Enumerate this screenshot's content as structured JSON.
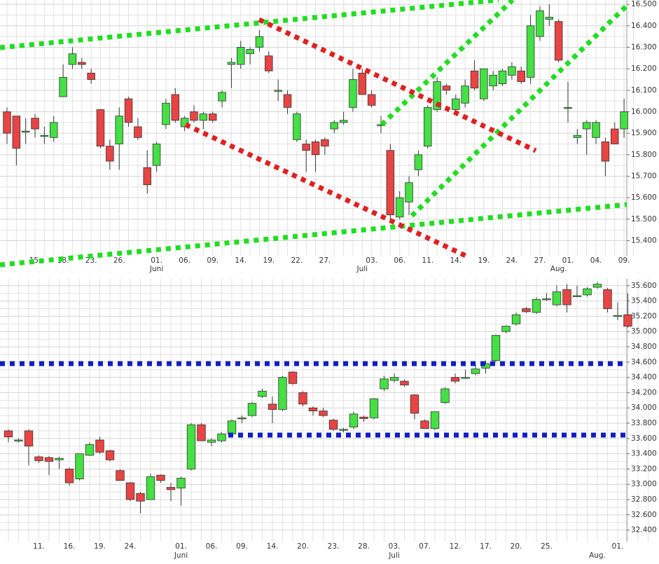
{
  "chart_data": [
    {
      "type": "candlestick",
      "categories": [
        null,
        null,
        null,
        "15.",
        null,
        null,
        "18.",
        null,
        null,
        "23.",
        null,
        null,
        "26.",
        null,
        null,
        null,
        "01.",
        null,
        null,
        "06.",
        null,
        null,
        "09.",
        null,
        null,
        "14.",
        null,
        null,
        "19.",
        null,
        null,
        "22.",
        null,
        null,
        "27.",
        null,
        null,
        null,
        null,
        "03.",
        null,
        null,
        "06.",
        null,
        null,
        "11.",
        null,
        null,
        "14.",
        null,
        null,
        "19.",
        null,
        null,
        "24.",
        null,
        null,
        "27.",
        null,
        null,
        "01.",
        null,
        null,
        "04.",
        null,
        null,
        "09.",
        null
      ],
      "months": [
        null,
        null,
        null,
        null,
        null,
        null,
        null,
        null,
        null,
        null,
        null,
        null,
        null,
        null,
        null,
        null,
        "Juni",
        null,
        null,
        null,
        null,
        null,
        null,
        null,
        null,
        null,
        null,
        null,
        null,
        null,
        null,
        null,
        null,
        null,
        null,
        null,
        null,
        null,
        "Juli",
        null,
        null,
        null,
        null,
        null,
        null,
        null,
        null,
        null,
        null,
        null,
        null,
        null,
        null,
        null,
        null,
        null,
        null,
        null,
        null,
        "Aug.",
        null,
        null,
        null,
        null,
        null,
        null,
        null
      ],
      "open": [
        16.0,
        15.98,
        15.91,
        15.97,
        15.89,
        15.88,
        16.07,
        16.22,
        16.23,
        16.18,
        16.01,
        15.84,
        15.85,
        16.06,
        15.93,
        15.74,
        15.75,
        15.94,
        16.08,
        15.93,
        16.0,
        15.96,
        15.99,
        16.05,
        16.22,
        16.22,
        16.27,
        16.3,
        16.26,
        16.1,
        16.08,
        15.87,
        15.85,
        15.86,
        15.87,
        15.92,
        15.95,
        16.02,
        16.18,
        16.08,
        15.94,
        15.82,
        15.51,
        15.58,
        15.73,
        15.84,
        16.01,
        16.12,
        16.01,
        16.04,
        16.19,
        16.06,
        16.12,
        16.13,
        16.17,
        16.19,
        16.16,
        16.35,
        16.43,
        16.42,
        16.02,
        15.88,
        15.92,
        15.88,
        15.86,
        15.92,
        15.92
      ],
      "high": [
        16.02,
        15.98,
        15.97,
        15.99,
        15.93,
        15.98,
        16.22,
        16.3,
        16.25,
        16.2,
        16.01,
        15.87,
        16.02,
        16.07,
        15.97,
        15.82,
        15.86,
        16.06,
        16.11,
        15.98,
        16.03,
        16.0,
        16.0,
        16.1,
        16.25,
        16.33,
        16.3,
        16.38,
        16.28,
        16.15,
        16.1,
        16.0,
        15.87,
        15.87,
        15.88,
        15.96,
        16.0,
        16.2,
        16.2,
        16.1,
        15.98,
        15.85,
        15.63,
        15.7,
        15.82,
        16.03,
        16.16,
        16.13,
        16.08,
        16.15,
        16.24,
        16.2,
        16.19,
        16.2,
        16.23,
        16.21,
        16.45,
        16.49,
        16.5,
        16.43,
        16.14,
        15.92,
        15.96,
        15.96,
        15.88,
        15.95,
        16.06
      ],
      "low": [
        15.85,
        15.75,
        15.85,
        15.88,
        15.85,
        15.86,
        16.07,
        16.2,
        16.2,
        16.13,
        15.83,
        15.73,
        15.73,
        15.93,
        15.87,
        15.62,
        15.72,
        15.92,
        15.95,
        15.91,
        15.95,
        15.92,
        15.95,
        16.02,
        16.11,
        16.2,
        16.22,
        16.28,
        16.18,
        16.05,
        15.99,
        15.86,
        15.72,
        15.72,
        15.8,
        15.9,
        15.94,
        16.0,
        16.08,
        16.02,
        15.9,
        15.5,
        15.5,
        15.52,
        15.7,
        15.83,
        16.0,
        16.08,
        16.0,
        16.02,
        16.1,
        16.05,
        16.1,
        16.12,
        16.15,
        16.13,
        16.13,
        16.33,
        16.4,
        16.23,
        15.95,
        15.85,
        15.8,
        15.85,
        15.7,
        15.85,
        15.88
      ],
      "close": [
        15.9,
        15.83,
        15.91,
        15.92,
        15.89,
        15.95,
        16.16,
        16.27,
        16.22,
        16.15,
        15.84,
        15.77,
        15.98,
        15.95,
        15.88,
        15.66,
        15.85,
        16.04,
        15.96,
        15.97,
        15.96,
        15.99,
        15.96,
        16.09,
        16.23,
        16.3,
        16.29,
        16.35,
        16.19,
        16.1,
        16.02,
        15.99,
        15.82,
        15.8,
        15.84,
        15.95,
        15.96,
        16.15,
        16.08,
        16.03,
        15.94,
        15.52,
        15.6,
        15.67,
        15.8,
        16.02,
        16.14,
        16.1,
        16.06,
        16.12,
        16.11,
        16.2,
        16.17,
        16.19,
        16.21,
        16.14,
        16.4,
        16.47,
        16.44,
        16.24,
        16.02,
        15.89,
        15.95,
        15.95,
        15.77,
        15.85,
        16.0
      ],
      "up_color": "#44e044",
      "down_color": "#e84444",
      "ylim": [
        15.33,
        16.52
      ],
      "yticks": [
        {
          "value": 15.4,
          "label": "15.400"
        },
        {
          "value": 15.5,
          "label": "15.500"
        },
        {
          "value": 15.6,
          "label": "15.600"
        },
        {
          "value": 15.7,
          "label": "15.700"
        },
        {
          "value": 15.8,
          "label": "15.800"
        },
        {
          "value": 15.9,
          "label": "15.900"
        },
        {
          "value": 16.0,
          "label": "16.000"
        },
        {
          "value": 16.1,
          "label": "16.100"
        },
        {
          "value": 16.2,
          "label": "16.200"
        },
        {
          "value": 16.3,
          "label": "16.300"
        },
        {
          "value": 16.4,
          "label": "16.400"
        },
        {
          "value": 16.5,
          "label": "16.500"
        }
      ],
      "grid": true
    },
    {
      "type": "candlestick",
      "categories": [
        null,
        null,
        null,
        "11.",
        null,
        null,
        "16.",
        null,
        null,
        "19.",
        null,
        null,
        "24.",
        null,
        null,
        null,
        null,
        "01.",
        null,
        null,
        "06.",
        null,
        null,
        "09.",
        null,
        null,
        "14.",
        null,
        null,
        "20.",
        null,
        null,
        "23.",
        null,
        null,
        "28.",
        null,
        null,
        "03.",
        null,
        null,
        "07.",
        null,
        null,
        "12.",
        null,
        null,
        "17.",
        null,
        null,
        "20.",
        null,
        null,
        "25.",
        null,
        null,
        null,
        null,
        null,
        null,
        "01.",
        null,
        null,
        null
      ],
      "months": [
        null,
        null,
        null,
        null,
        null,
        null,
        null,
        null,
        null,
        null,
        null,
        null,
        null,
        null,
        null,
        null,
        null,
        "Juni",
        null,
        null,
        null,
        null,
        null,
        null,
        null,
        null,
        null,
        null,
        null,
        null,
        null,
        null,
        null,
        null,
        null,
        null,
        null,
        null,
        "Juli",
        null,
        null,
        null,
        null,
        null,
        null,
        null,
        null,
        null,
        null,
        null,
        null,
        null,
        null,
        null,
        null,
        null,
        null,
        null,
        "Aug.",
        null,
        null,
        null
      ],
      "open": [
        33.7,
        33.58,
        33.7,
        33.36,
        33.35,
        33.32,
        33.2,
        33.07,
        33.38,
        33.58,
        33.44,
        33.18,
        33.02,
        32.88,
        32.8,
        33.12,
        32.96,
        32.95,
        33.2,
        33.78,
        33.55,
        33.57,
        33.66,
        33.86,
        33.9,
        34.15,
        34.05,
        33.98,
        34.47,
        34.2,
        34.0,
        33.96,
        33.84,
        33.72,
        33.75,
        33.88,
        33.87,
        34.25,
        34.36,
        34.35,
        34.17,
        33.83,
        33.73,
        34.07,
        34.4,
        34.4,
        34.45,
        34.52,
        34.62,
        35.0,
        35.1,
        35.3,
        35.25,
        35.42,
        35.35,
        35.55,
        35.46,
        35.48,
        35.58,
        35.55,
        35.2,
        35.22
      ],
      "high": [
        33.72,
        33.6,
        33.72,
        33.38,
        33.37,
        33.36,
        33.22,
        33.4,
        33.55,
        33.62,
        33.45,
        33.2,
        33.03,
        32.9,
        33.14,
        33.13,
        33.02,
        33.1,
        33.8,
        33.8,
        33.6,
        33.68,
        33.85,
        33.9,
        34.08,
        34.25,
        34.15,
        34.42,
        34.48,
        34.22,
        34.02,
        34.0,
        33.86,
        33.74,
        33.95,
        33.9,
        34.13,
        34.42,
        34.45,
        34.37,
        34.18,
        33.85,
        33.95,
        34.27,
        34.45,
        34.5,
        34.58,
        34.62,
        34.96,
        35.08,
        35.25,
        35.32,
        35.45,
        35.5,
        35.6,
        35.62,
        35.6,
        35.58,
        35.65,
        35.57,
        35.38,
        35.5
      ],
      "low": [
        33.55,
        33.55,
        33.25,
        33.28,
        33.12,
        33.2,
        32.98,
        33.05,
        33.37,
        33.4,
        33.3,
        33.05,
        32.78,
        32.62,
        32.8,
        33.02,
        32.78,
        32.72,
        33.18,
        33.57,
        33.5,
        33.55,
        33.62,
        33.8,
        33.88,
        34.13,
        33.8,
        33.96,
        34.3,
        34.02,
        33.9,
        33.88,
        33.7,
        33.68,
        33.72,
        33.82,
        33.85,
        34.22,
        34.33,
        34.28,
        33.85,
        33.73,
        33.71,
        34.05,
        34.32,
        34.38,
        34.43,
        34.45,
        34.6,
        34.98,
        35.08,
        35.24,
        35.23,
        35.4,
        35.33,
        35.25,
        35.45,
        35.46,
        35.56,
        35.25,
        35.15,
        35.05
      ],
      "close": [
        33.62,
        33.58,
        33.5,
        33.31,
        33.3,
        33.34,
        33.02,
        33.4,
        33.52,
        33.42,
        33.32,
        33.05,
        32.8,
        32.78,
        33.1,
        33.05,
        32.93,
        33.08,
        33.78,
        33.57,
        33.58,
        33.66,
        33.83,
        33.87,
        34.06,
        34.22,
        33.98,
        34.4,
        34.32,
        34.05,
        33.96,
        33.9,
        33.72,
        33.72,
        33.92,
        33.86,
        34.12,
        34.38,
        34.4,
        34.3,
        33.93,
        33.73,
        33.95,
        34.25,
        34.35,
        34.4,
        34.51,
        34.58,
        34.95,
        35.07,
        35.22,
        35.26,
        35.42,
        35.43,
        35.52,
        35.35,
        35.47,
        35.56,
        35.62,
        35.3,
        35.21,
        35.07
      ],
      "up_color": "#44e044",
      "down_color": "#e84444",
      "ylim": [
        32.25,
        35.69
      ],
      "yticks": [
        {
          "value": 32.4,
          "label": "32.400"
        },
        {
          "value": 32.6,
          "label": "32.600"
        },
        {
          "value": 32.8,
          "label": "32.800"
        },
        {
          "value": 33.0,
          "label": "33.000"
        },
        {
          "value": 33.2,
          "label": "33.200"
        },
        {
          "value": 33.4,
          "label": "33.400"
        },
        {
          "value": 33.6,
          "label": "33.600"
        },
        {
          "value": 33.8,
          "label": "33.800"
        },
        {
          "value": 34.0,
          "label": "34.000"
        },
        {
          "value": 34.2,
          "label": "34.200"
        },
        {
          "value": 34.4,
          "label": "34.400"
        },
        {
          "value": 34.6,
          "label": "34.600"
        },
        {
          "value": 34.8,
          "label": "34.800"
        },
        {
          "value": 35.0,
          "label": "35.000"
        },
        {
          "value": 35.2,
          "label": "35.200"
        },
        {
          "value": 35.4,
          "label": "35.400"
        },
        {
          "value": 35.6,
          "label": "35.600"
        }
      ],
      "grid": true
    }
  ]
}
